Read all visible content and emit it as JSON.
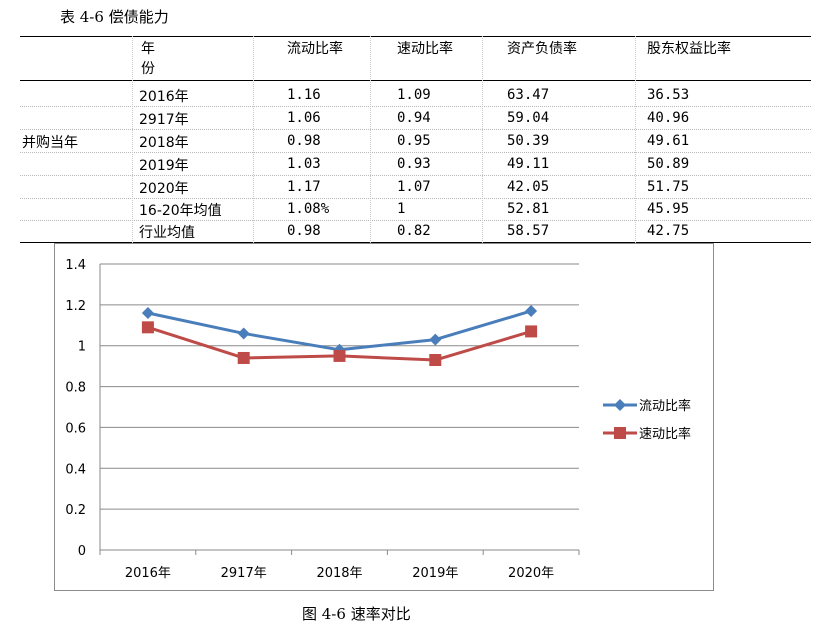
{
  "table_caption": "表 4-6  偿债能力",
  "figure_caption": "图 4-6  速率对比",
  "table": {
    "header_year_line1": "年",
    "header_year_line2": "份",
    "columns": [
      "流动比率",
      "速动比率",
      "资产负债率",
      "股东权益比率"
    ],
    "group_label": "并购当年",
    "rows": [
      {
        "year": "2016年",
        "values": [
          "1.16",
          "1.09",
          "63.47",
          "36.53"
        ]
      },
      {
        "year": "2917年",
        "values": [
          "1.06",
          "0.94",
          "59.04",
          "40.96"
        ]
      },
      {
        "year": "2018年",
        "values": [
          "0.98",
          "0.95",
          "50.39",
          "49.61"
        ]
      },
      {
        "year": "2019年",
        "values": [
          "1.03",
          "0.93",
          "49.11",
          "50.89"
        ]
      },
      {
        "year": "2020年",
        "values": [
          "1.17",
          "1.07",
          "42.05",
          "51.75"
        ]
      },
      {
        "year": "16-20年均值",
        "values": [
          "1.08%",
          "1",
          "52.81",
          "45.95"
        ]
      },
      {
        "year": "行业均值",
        "values": [
          "0.98",
          "0.82",
          "58.57",
          "42.75"
        ]
      }
    ]
  },
  "chart_data": {
    "type": "line",
    "categories": [
      "2016年",
      "2917年",
      "2018年",
      "2019年",
      "2020年"
    ],
    "series": [
      {
        "name": "流动比率",
        "values": [
          1.16,
          1.06,
          0.98,
          1.03,
          1.17
        ],
        "color": "#4a7ebb",
        "marker": "diamond"
      },
      {
        "name": "速动比率",
        "values": [
          1.09,
          0.94,
          0.95,
          0.93,
          1.07
        ],
        "color": "#be4b48",
        "marker": "square"
      }
    ],
    "ylim": [
      0,
      1.4
    ],
    "yticks": [
      "0",
      "0.2",
      "0.4",
      "0.6",
      "0.8",
      "1",
      "1.2",
      "1.4"
    ],
    "grid": true,
    "legend": "right"
  }
}
